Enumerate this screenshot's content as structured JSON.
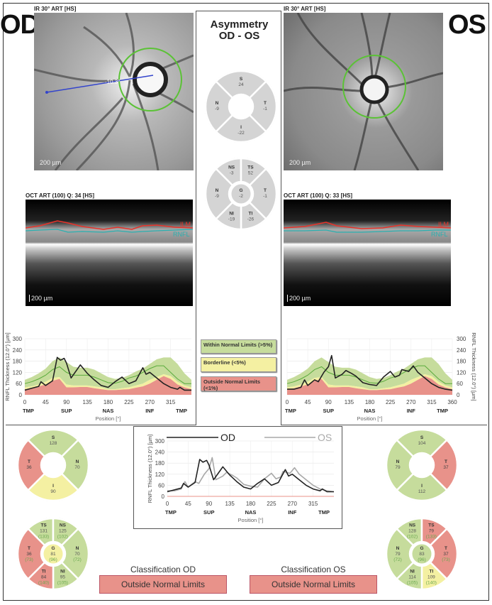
{
  "od": {
    "eye_label": "OD",
    "fundus": {
      "label": "IR 30° ART [HS]",
      "scale": "200 µm",
      "angle": "-10.3°"
    },
    "oct": {
      "label": "OCT ART (100) Q: 34 [HS]",
      "scale": "200 µm",
      "ilm": "ILM",
      "rnfl": "RNFL"
    },
    "classification": {
      "title": "Classification OD",
      "value": "Outside Normal Limits",
      "status": "outside"
    },
    "sectors4": [
      {
        "id": "S",
        "value": "128",
        "status": "within"
      },
      {
        "id": "N",
        "value": "70",
        "status": "within"
      },
      {
        "id": "I",
        "value": "90",
        "status": "borderline"
      },
      {
        "id": "T",
        "value": "36",
        "status": "outside"
      }
    ],
    "sectors6": [
      {
        "id": "TS",
        "value": "131",
        "normal": "(133)",
        "status": "within"
      },
      {
        "id": "NS",
        "value": "125",
        "normal": "(102)",
        "status": "within"
      },
      {
        "id": "N",
        "value": "70",
        "normal": "(72)",
        "status": "within"
      },
      {
        "id": "NI",
        "value": "95",
        "normal": "(105)",
        "status": "within"
      },
      {
        "id": "TI",
        "value": "84",
        "normal": "(140)",
        "status": "outside"
      },
      {
        "id": "T",
        "value": "36",
        "normal": "(73)",
        "status": "outside"
      },
      {
        "id": "G",
        "value": "81",
        "normal": "(96)",
        "status": "borderline"
      }
    ]
  },
  "os": {
    "eye_label": "OS",
    "fundus": {
      "label": "IR 30° ART [HS]",
      "scale": "200 µm"
    },
    "oct": {
      "label": "OCT ART (100) Q: 33 [HS]",
      "scale": "200 µm",
      "ilm": "ILM",
      "rnfl": "RNFL"
    },
    "classification": {
      "title": "Classification OS",
      "value": "Outside Normal Limits",
      "status": "outside"
    },
    "sectors4": [
      {
        "id": "S",
        "value": "104",
        "status": "within"
      },
      {
        "id": "T",
        "value": "37",
        "status": "outside"
      },
      {
        "id": "I",
        "value": "112",
        "status": "within"
      },
      {
        "id": "N",
        "value": "79",
        "status": "within"
      }
    ],
    "sectors6": [
      {
        "id": "NS",
        "value": "128",
        "normal": "(102)",
        "status": "within"
      },
      {
        "id": "TS",
        "value": "79",
        "normal": "(133)",
        "status": "outside"
      },
      {
        "id": "T",
        "value": "37",
        "normal": "(73)",
        "status": "outside"
      },
      {
        "id": "TI",
        "value": "109",
        "normal": "(140)",
        "status": "borderline"
      },
      {
        "id": "NI",
        "value": "114",
        "normal": "(105)",
        "status": "within"
      },
      {
        "id": "N",
        "value": "79",
        "normal": "(72)",
        "status": "within"
      },
      {
        "id": "G",
        "value": "83",
        "normal": "(96)",
        "status": "within"
      }
    ]
  },
  "asymmetry": {
    "title_line1": "Asymmetry",
    "title_line2": "OD - OS",
    "sectors4": [
      {
        "id": "S",
        "value": "24"
      },
      {
        "id": "T",
        "value": "-1"
      },
      {
        "id": "I",
        "value": "-22"
      },
      {
        "id": "N",
        "value": "-9"
      }
    ],
    "sectors6": [
      {
        "id": "NS",
        "value": "-3"
      },
      {
        "id": "TS",
        "value": "52"
      },
      {
        "id": "T",
        "value": "-1"
      },
      {
        "id": "TI",
        "value": "-26"
      },
      {
        "id": "NI",
        "value": "-19"
      },
      {
        "id": "N",
        "value": "-9"
      },
      {
        "id": "G",
        "value": "-2"
      }
    ]
  },
  "legend": [
    {
      "label": "Within Normal Limits (>5%)",
      "status": "within"
    },
    {
      "label": "Borderline (<5%)",
      "status": "borderline"
    },
    {
      "label": "Outside Normal Limits (<1%)",
      "status": "outside"
    }
  ],
  "colors": {
    "within": "#c6dc9c",
    "borderline": "#f4f0a2",
    "outside": "#e8928a",
    "asymmetry": "#d4d4d4",
    "normal_text": "#6aa84f",
    "od_line": "#222222",
    "os_line": "#a8a8a8",
    "mean_line": "#5aab3c"
  },
  "chart_common": {
    "ylabel": "RNFL Thickness (12.0°) [µm]",
    "xlabel": "Position [°]",
    "yticks": [
      0,
      60,
      120,
      180,
      240,
      300
    ],
    "ylim": [
      0,
      300
    ],
    "xlim": [
      0,
      360
    ],
    "regions": [
      {
        "label": "TMP",
        "x": 0
      },
      {
        "label": "SUP",
        "x": 90
      },
      {
        "label": "NAS",
        "x": 180
      },
      {
        "label": "INF",
        "x": 270
      },
      {
        "label": "TMP",
        "x": 360
      }
    ]
  },
  "chart_data": [
    {
      "id": "od-rnfl",
      "type": "line",
      "xticks": [
        0,
        45,
        90,
        135,
        180,
        225,
        270,
        315
      ],
      "norm_x": [
        0,
        15,
        30,
        45,
        60,
        75,
        90,
        105,
        120,
        135,
        150,
        165,
        180,
        195,
        210,
        225,
        240,
        255,
        270,
        285,
        300,
        315,
        330,
        345,
        360
      ],
      "mean": [
        60,
        70,
        85,
        105,
        135,
        150,
        120,
        105,
        105,
        105,
        95,
        80,
        65,
        62,
        72,
        90,
        100,
        120,
        140,
        155,
        155,
        120,
        85,
        60,
        60
      ],
      "p95": [
        80,
        95,
        115,
        140,
        180,
        200,
        175,
        150,
        145,
        145,
        135,
        115,
        95,
        85,
        90,
        105,
        125,
        140,
        165,
        190,
        200,
        200,
        165,
        115,
        80
      ],
      "p5": [
        40,
        45,
        55,
        70,
        90,
        95,
        55,
        50,
        50,
        50,
        45,
        40,
        30,
        30,
        35,
        40,
        50,
        60,
        80,
        95,
        110,
        100,
        70,
        50,
        40
      ],
      "p1": [
        30,
        35,
        45,
        55,
        75,
        85,
        40,
        40,
        42,
        42,
        35,
        30,
        25,
        25,
        28,
        30,
        38,
        45,
        60,
        80,
        100,
        85,
        55,
        40,
        30
      ],
      "series": [
        {
          "eye": "OD",
          "x": [
            0,
            15,
            30,
            35,
            45,
            60,
            70,
            77,
            85,
            90,
            100,
            120,
            135,
            150,
            165,
            180,
            195,
            210,
            225,
            240,
            255,
            262,
            270,
            285,
            300,
            315,
            330,
            335,
            345,
            360
          ],
          "y": [
            25,
            35,
            45,
            70,
            50,
            75,
            200,
            185,
            195,
            170,
            90,
            160,
            115,
            80,
            50,
            40,
            70,
            95,
            60,
            75,
            145,
            110,
            120,
            90,
            60,
            40,
            30,
            40,
            25,
            25
          ]
        }
      ]
    },
    {
      "id": "os-rnfl",
      "type": "line",
      "xticks": [
        0,
        45,
        90,
        135,
        180,
        225,
        270,
        315,
        360
      ],
      "norm_x": [
        0,
        15,
        30,
        45,
        60,
        75,
        90,
        105,
        120,
        135,
        150,
        165,
        180,
        195,
        210,
        225,
        240,
        255,
        270,
        285,
        300,
        315,
        330,
        345,
        360
      ],
      "mean": [
        60,
        70,
        85,
        105,
        135,
        150,
        120,
        105,
        105,
        105,
        95,
        80,
        65,
        62,
        72,
        90,
        100,
        120,
        140,
        155,
        155,
        120,
        85,
        60,
        60
      ],
      "p95": [
        80,
        95,
        115,
        140,
        180,
        200,
        175,
        150,
        145,
        145,
        135,
        115,
        95,
        85,
        90,
        105,
        125,
        140,
        165,
        190,
        200,
        200,
        165,
        115,
        80
      ],
      "p5": [
        40,
        45,
        55,
        70,
        90,
        95,
        55,
        50,
        50,
        50,
        45,
        40,
        30,
        30,
        35,
        40,
        50,
        60,
        80,
        95,
        110,
        100,
        70,
        50,
        40
      ],
      "p1": [
        30,
        35,
        45,
        55,
        75,
        85,
        40,
        40,
        42,
        42,
        35,
        30,
        25,
        25,
        28,
        30,
        38,
        45,
        60,
        80,
        100,
        85,
        55,
        40,
        30
      ],
      "series": [
        {
          "eye": "OS",
          "x": [
            0,
            15,
            30,
            38,
            45,
            60,
            68,
            80,
            90,
            97,
            105,
            120,
            128,
            140,
            150,
            165,
            180,
            195,
            210,
            225,
            235,
            245,
            250,
            265,
            275,
            285,
            300,
            315,
            330,
            345,
            360
          ],
          "y": [
            30,
            30,
            40,
            80,
            50,
            80,
            70,
            120,
            150,
            210,
            90,
            110,
            130,
            115,
            100,
            65,
            55,
            50,
            95,
            125,
            95,
            105,
            135,
            125,
            155,
            120,
            90,
            60,
            40,
            30,
            25
          ]
        }
      ]
    },
    {
      "id": "comparison",
      "type": "line",
      "xticks": [
        0,
        45,
        90,
        135,
        180,
        225,
        270,
        315
      ],
      "legend": [
        {
          "name": "OD"
        },
        {
          "name": "OS"
        }
      ],
      "series": [
        {
          "name": "OD"
        },
        {
          "name": "OS"
        }
      ]
    }
  ]
}
